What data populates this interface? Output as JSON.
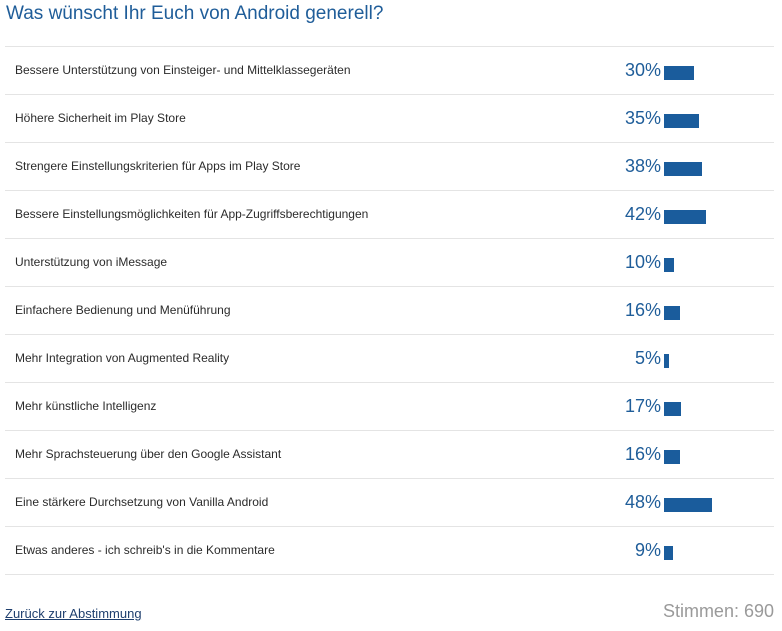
{
  "chart_data": {
    "type": "bar",
    "title": "Was wünscht Ihr Euch von Android generell?",
    "categories": [
      "Bessere Unterstützung von Einsteiger- und Mittelklassegeräten",
      "Höhere Sicherheit im Play Store",
      "Strengere Einstellungskriterien für Apps im Play Store",
      "Bessere Einstellungsmöglichkeiten für App-Zugriffsberechtigungen",
      "Unterstützung von iMessage",
      "Einfachere Bedienung und Menüführung",
      "Mehr Integration von Augmented Reality",
      "Mehr künstliche Intelligenz",
      "Mehr Sprachsteuerung über den Google Assistant",
      "Eine stärkere Durchsetzung von Vanilla Android",
      "Etwas anderes - ich schreib's in die Kommentare"
    ],
    "values": [
      30,
      35,
      38,
      42,
      10,
      16,
      5,
      17,
      16,
      48,
      9
    ],
    "value_labels": [
      "30%",
      "35%",
      "38%",
      "42%",
      "10%",
      "16%",
      "5%",
      "17%",
      "16%",
      "48%",
      "9%"
    ],
    "unit": "%",
    "xlim": [
      0,
      100
    ],
    "orientation": "horizontal",
    "bar_color": "#1a5c9c",
    "grid": false,
    "legend": "none"
  },
  "footer": {
    "back_link": "Zurück zur Abstimmung",
    "votes": "Stimmen: 690"
  },
  "colors": {
    "accent": "#1f5d99",
    "bar": "#1a5c9c",
    "muted": "#9a9a9a"
  }
}
